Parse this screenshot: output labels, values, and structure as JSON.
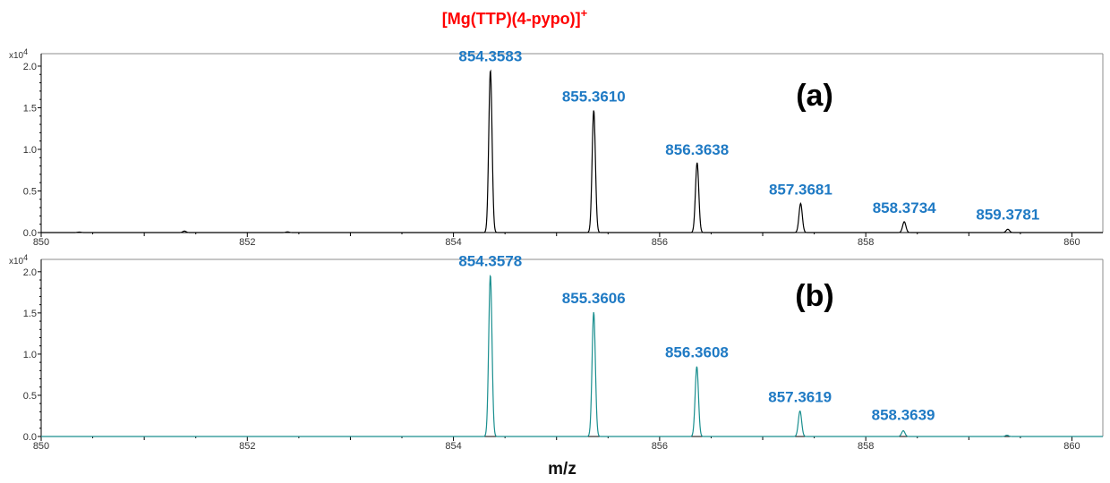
{
  "colors": {
    "title": "#ff0000",
    "peak_label": "#1f7ac4",
    "trace_a": "#000000",
    "trace_b": "#1a8f8f",
    "axis": "#000000",
    "axis_top_right": "#8c8c8c"
  },
  "chart_data": {
    "type": "line",
    "title": "[Mg(TTP)(4-pypo)]",
    "title_superscript": "+",
    "xlabel": "m/z",
    "panels": [
      {
        "tag": "(a)",
        "trace_color": "#000000",
        "xlim": [
          850,
          860.3
        ],
        "ylim": [
          0,
          2.15
        ],
        "y_multiplier": "x10",
        "y_multiplier_exp": "4",
        "yticks": [
          "0.0",
          "0.5",
          "1.0",
          "1.5",
          "2.0"
        ],
        "xticks": [
          "850",
          "852",
          "854",
          "856",
          "858",
          "860"
        ],
        "peaks": [
          {
            "x": 850.37,
            "y": 0.006,
            "label": ""
          },
          {
            "x": 851.39,
            "y": 0.018,
            "label": ""
          },
          {
            "x": 852.39,
            "y": 0.008,
            "label": ""
          },
          {
            "x": 854.3583,
            "y": 1.95,
            "label": "854.3583"
          },
          {
            "x": 855.361,
            "y": 1.47,
            "label": "855.3610"
          },
          {
            "x": 856.3638,
            "y": 0.84,
            "label": "856.3638"
          },
          {
            "x": 857.3681,
            "y": 0.35,
            "label": "857.3681"
          },
          {
            "x": 858.3734,
            "y": 0.13,
            "label": "858.3734"
          },
          {
            "x": 859.3781,
            "y": 0.04,
            "label": "859.3781"
          }
        ]
      },
      {
        "tag": "(b)",
        "trace_color": "#1a8f8f",
        "xlim": [
          850,
          860.3
        ],
        "ylim": [
          0,
          2.15
        ],
        "y_multiplier": "x10",
        "y_multiplier_exp": "4",
        "yticks": [
          "0.0",
          "0.5",
          "1.0",
          "1.5",
          "2.0"
        ],
        "xticks": [
          "850",
          "852",
          "854",
          "856",
          "858",
          "860"
        ],
        "peaks": [
          {
            "x": 854.3578,
            "y": 1.96,
            "label": "854.3578"
          },
          {
            "x": 855.3606,
            "y": 1.51,
            "label": "855.3606"
          },
          {
            "x": 856.3608,
            "y": 0.85,
            "label": "856.3608"
          },
          {
            "x": 857.3619,
            "y": 0.31,
            "label": "857.3619"
          },
          {
            "x": 858.3639,
            "y": 0.07,
            "label": "858.3639"
          },
          {
            "x": 859.37,
            "y": 0.015,
            "label": ""
          }
        ]
      }
    ]
  }
}
